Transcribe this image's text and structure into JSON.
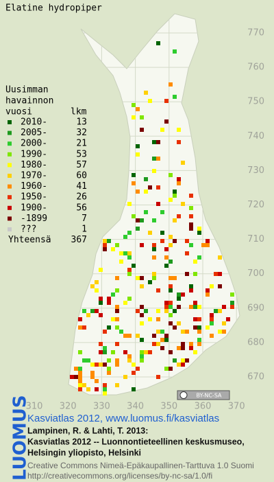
{
  "map": {
    "title": "Elatine hydropiper",
    "legend": {
      "heading": [
        "Uusimman",
        "havainnon",
        "vuosi"
      ],
      "count_heading": "lkm",
      "entries": [
        {
          "label": "2010-",
          "count": 13,
          "color": "#006400"
        },
        {
          "label": "2005-",
          "count": 32,
          "color": "#1e9a1e"
        },
        {
          "label": "2000-",
          "count": 21,
          "color": "#2ecc2e"
        },
        {
          "label": "1990-",
          "count": 53,
          "color": "#7fe600"
        },
        {
          "label": "1980-",
          "count": 57,
          "color": "#ffff00"
        },
        {
          "label": "1970-",
          "count": 60,
          "color": "#ffd000"
        },
        {
          "label": "1960-",
          "count": 41,
          "color": "#ff8c00"
        },
        {
          "label": "1950-",
          "count": 26,
          "color": "#e83000"
        },
        {
          "label": "1900-",
          "count": 56,
          "color": "#c80000"
        },
        {
          "label": "-1899",
          "count": 7,
          "color": "#7a0000"
        },
        {
          "label": "???",
          "count": 1,
          "color": "#c8c8c8"
        }
      ],
      "total_label": "Yhteensä",
      "total": 367
    },
    "grid": {
      "xticks": [
        310,
        320,
        330,
        340,
        350,
        360,
        370
      ],
      "yticks": [
        770,
        760,
        750,
        740,
        730,
        720,
        710,
        700,
        690,
        680,
        670
      ]
    },
    "license_badge": "BY-NC-SA",
    "logo": "LUOMUS",
    "source": "Kasviatlas 2012, www.luomus.fi/kasviatlas",
    "citation": [
      "Lampinen, R. & Lahti, T. 2013:",
      "Kasviatlas 2012 -- Luonnontieteellinen keskusmuseo,",
      "Helsingin yliopisto, Helsinki"
    ],
    "license": [
      "Creative Commons Nimeä-Epäkaupallinen-Tarttuva 1.0 Suomi",
      "http://creativecommons.org/licenses/by-nc-sa/1.0/fi"
    ]
  }
}
